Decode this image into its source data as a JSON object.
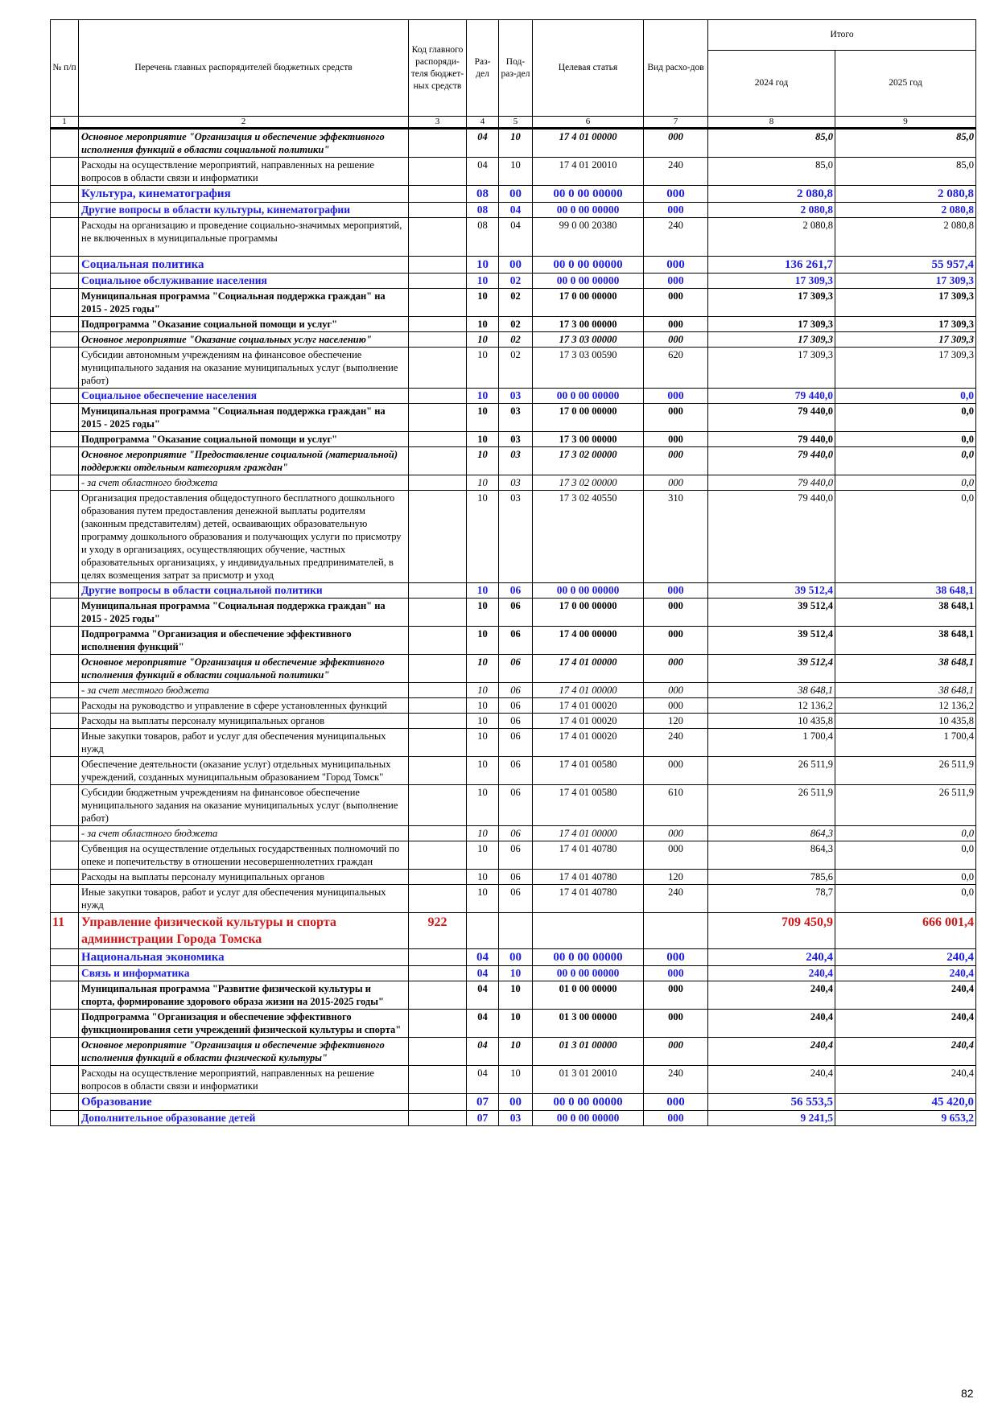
{
  "header": {
    "col_no": "№ п/п",
    "col_name": "Перечень главных распорядителей бюджетных средств",
    "col_code": "Код главного распоряди-теля бюджет-ных средств",
    "col_razdel": "Раз-дел",
    "col_podrazdel": "Под-раз-дел",
    "col_article": "Целевая статья",
    "col_vid": "Вид расхо-дов",
    "col_total": "Итого",
    "col_2024": "2024 год",
    "col_2025": "2025 год",
    "numbers": [
      "1",
      "2",
      "3",
      "4",
      "5",
      "6",
      "7",
      "8",
      "9"
    ]
  },
  "rows": [
    {
      "level": "osn",
      "name": "Основное мероприятие \"Организация и обеспечение эффективного исполнения функций в области социальной политики\"",
      "code": "",
      "razdel": "04",
      "podrazdel": "10",
      "article": "17 4 01 00000",
      "vid": "000",
      "y2024": "85,0",
      "y2025": "85,0"
    },
    {
      "level": "item",
      "name": "Расходы на осуществление мероприятий, направленных на решение вопросов в области связи и информатики",
      "code": "",
      "razdel": "04",
      "podrazdel": "10",
      "article": "17 4 01 20010",
      "vid": "240",
      "y2024": "85,0",
      "y2025": "85,0"
    },
    {
      "level": "razdel",
      "name": "Культура, кинематография",
      "code": "",
      "razdel": "08",
      "podrazdel": "00",
      "article": "00 0 00 00000",
      "vid": "000",
      "y2024": "2 080,8",
      "y2025": "2 080,8"
    },
    {
      "level": "podrazdel",
      "name": "Другие вопросы в области культуры, кинематографии",
      "code": "",
      "razdel": "08",
      "podrazdel": "04",
      "article": "00 0 00 00000",
      "vid": "000",
      "y2024": "2 080,8",
      "y2025": "2 080,8"
    },
    {
      "level": "item",
      "name": "Расходы на организацию и проведение социально-значимых мероприятий, не включенных в муниципальные программы",
      "code": "",
      "razdel": "08",
      "podrazdel": "04",
      "article": "99 0 00 20380",
      "vid": "240",
      "y2024": "2 080,8",
      "y2025": "2 080,8",
      "tall": true
    },
    {
      "level": "razdel",
      "name": "Социальная политика",
      "code": "",
      "razdel": "10",
      "podrazdel": "00",
      "article": "00 0 00 00000",
      "vid": "000",
      "y2024": "136 261,7",
      "y2025": "55 957,4"
    },
    {
      "level": "podrazdel",
      "name": "Социальное обслуживание населения",
      "code": "",
      "razdel": "10",
      "podrazdel": "02",
      "article": "00 0 00 00000",
      "vid": "000",
      "y2024": "17 309,3",
      "y2025": "17 309,3"
    },
    {
      "level": "prog",
      "name": "Муниципальная программа \"Социальная поддержка граждан\" на 2015 - 2025 годы\"",
      "code": "",
      "razdel": "10",
      "podrazdel": "02",
      "article": "17 0 00 00000",
      "vid": "000",
      "y2024": "17 309,3",
      "y2025": "17 309,3"
    },
    {
      "level": "prog",
      "name": "Подпрограмма \"Оказание социальной помощи и услуг\"",
      "code": "",
      "razdel": "10",
      "podrazdel": "02",
      "article": "17 3 00 00000",
      "vid": "000",
      "y2024": "17 309,3",
      "y2025": "17 309,3"
    },
    {
      "level": "osn",
      "name": "Основное мероприятие \"Оказание социальных услуг населению\"",
      "code": "",
      "razdel": "10",
      "podrazdel": "02",
      "article": "17 3 03 00000",
      "vid": "000",
      "y2024": "17 309,3",
      "y2025": "17 309,3"
    },
    {
      "level": "item",
      "name": "Субсидии автономным учреждениям на финансовое обеспечение муниципального задания на оказание муниципальных услуг (выполнение работ)",
      "code": "",
      "razdel": "10",
      "podrazdel": "02",
      "article": "17 3 03 00590",
      "vid": "620",
      "y2024": "17 309,3",
      "y2025": "17 309,3"
    },
    {
      "level": "podrazdel",
      "name": "Социальное обеспечение населения",
      "code": "",
      "razdel": "10",
      "podrazdel": "03",
      "article": "00 0 00 00000",
      "vid": "000",
      "y2024": "79 440,0",
      "y2025": "0,0"
    },
    {
      "level": "prog",
      "name": "Муниципальная программа \"Социальная поддержка граждан\" на 2015 - 2025 годы\"",
      "code": "",
      "razdel": "10",
      "podrazdel": "03",
      "article": "17 0 00 00000",
      "vid": "000",
      "y2024": "79 440,0",
      "y2025": "0,0"
    },
    {
      "level": "prog",
      "name": "Подпрограмма \"Оказание социальной помощи и услуг\"",
      "code": "",
      "razdel": "10",
      "podrazdel": "03",
      "article": "17 3 00 00000",
      "vid": "000",
      "y2024": "79 440,0",
      "y2025": "0,0"
    },
    {
      "level": "osn",
      "name": "Основное мероприятие \"Предоставление социальной (материальной) поддержки отдельным категориям граждан\"",
      "code": "",
      "razdel": "10",
      "podrazdel": "03",
      "article": "17 3 02 00000",
      "vid": "000",
      "y2024": "79 440,0",
      "y2025": "0,0"
    },
    {
      "level": "src",
      "name": " - за счет областного бюджета",
      "code": "",
      "razdel": "10",
      "podrazdel": "03",
      "article": "17 3 02 00000",
      "vid": "000",
      "y2024": "79 440,0",
      "y2025": "0,0"
    },
    {
      "level": "item",
      "name": "Организация предоставления общедоступного бесплатного дошкольного образования путем предоставления денежной выплаты родителям (законным представителям) детей, осваивающих образовательную программу дошкольного образования и получающих услуги по присмотру и уходу в организациях, осуществляющих обучение, частных образовательных организациях, у индивидуальных предпринимателей, в целях возмещения затрат за присмотр и уход",
      "code": "",
      "razdel": "10",
      "podrazdel": "03",
      "article": "17 3 02 40550",
      "vid": "310",
      "y2024": "79 440,0",
      "y2025": "0,0"
    },
    {
      "level": "podrazdel",
      "name": "Другие вопросы в области социальной политики",
      "code": "",
      "razdel": "10",
      "podrazdel": "06",
      "article": "00 0 00 00000",
      "vid": "000",
      "y2024": "39 512,4",
      "y2025": "38 648,1"
    },
    {
      "level": "prog",
      "name": "Муниципальная программа \"Социальная поддержка граждан\" на 2015 - 2025 годы\"",
      "code": "",
      "razdel": "10",
      "podrazdel": "06",
      "article": "17 0 00 00000",
      "vid": "000",
      "y2024": "39 512,4",
      "y2025": "38 648,1"
    },
    {
      "level": "prog",
      "name": "Подпрограмма \"Организация и обеспечение эффективного исполнения функций\"",
      "code": "",
      "razdel": "10",
      "podrazdel": "06",
      "article": "17 4 00 00000",
      "vid": "000",
      "y2024": "39 512,4",
      "y2025": "38 648,1"
    },
    {
      "level": "osn",
      "name": "Основное мероприятие \"Организация и обеспечение эффективного исполнения функций в области социальной политики\"",
      "code": "",
      "razdel": "10",
      "podrazdel": "06",
      "article": "17 4 01 00000",
      "vid": "000",
      "y2024": "39 512,4",
      "y2025": "38 648,1"
    },
    {
      "level": "src",
      "name": " - за счет местного бюджета",
      "code": "",
      "razdel": "10",
      "podrazdel": "06",
      "article": "17 4 01 00000",
      "vid": "000",
      "y2024": "38 648,1",
      "y2025": "38 648,1"
    },
    {
      "level": "item",
      "name": "Расходы на руководство и управление в сфере установленных функций",
      "code": "",
      "razdel": "10",
      "podrazdel": "06",
      "article": "17 4 01 00020",
      "vid": "000",
      "y2024": "12 136,2",
      "y2025": "12 136,2"
    },
    {
      "level": "item",
      "name": "Расходы на выплаты персоналу муниципальных органов",
      "code": "",
      "razdel": "10",
      "podrazdel": "06",
      "article": "17 4 01 00020",
      "vid": "120",
      "y2024": "10 435,8",
      "y2025": "10 435,8"
    },
    {
      "level": "item",
      "name": "Иные закупки товаров, работ и услуг для обеспечения муниципальных нужд",
      "code": "",
      "razdel": "10",
      "podrazdel": "06",
      "article": "17 4 01 00020",
      "vid": "240",
      "y2024": "1 700,4",
      "y2025": "1 700,4"
    },
    {
      "level": "item",
      "name": "Обеспечение деятельности (оказание услуг) отдельных муниципальных учреждений, созданных муниципальным образованием \"Город Томск\"",
      "code": "",
      "razdel": "10",
      "podrazdel": "06",
      "article": "17 4 01 00580",
      "vid": "000",
      "y2024": "26 511,9",
      "y2025": "26 511,9"
    },
    {
      "level": "item",
      "name": "Субсидии бюджетным учреждениям на финансовое обеспечение муниципального задания на оказание муниципальных услуг (выполнение работ)",
      "code": "",
      "razdel": "10",
      "podrazdel": "06",
      "article": "17 4 01 00580",
      "vid": "610",
      "y2024": "26 511,9",
      "y2025": "26 511,9"
    },
    {
      "level": "src",
      "name": " - за счет областного бюджета",
      "code": "",
      "razdel": "10",
      "podrazdel": "06",
      "article": "17 4 01 00000",
      "vid": "000",
      "y2024": "864,3",
      "y2025": "0,0"
    },
    {
      "level": "item",
      "name": "Субвенция на осуществление отдельных государственных полномочий по опеке и попечительству в отношении несовершеннолетних граждан",
      "code": "",
      "razdel": "10",
      "podrazdel": "06",
      "article": "17 4 01 40780",
      "vid": "000",
      "y2024": "864,3",
      "y2025": "0,0"
    },
    {
      "level": "item",
      "name": "Расходы на выплаты персоналу муниципальных органов",
      "code": "",
      "razdel": "10",
      "podrazdel": "06",
      "article": "17 4 01 40780",
      "vid": "120",
      "y2024": "785,6",
      "y2025": "0,0"
    },
    {
      "level": "item",
      "name": "Иные закупки товаров, работ и услуг для обеспечения муниципальных нужд",
      "code": "",
      "razdel": "10",
      "podrazdel": "06",
      "article": "17 4 01 40780",
      "vid": "240",
      "y2024": "78,7",
      "y2025": "0,0"
    },
    {
      "level": "dept",
      "no": "11",
      "name": "Управление физической культуры и спорта администрации Города Томска",
      "code": "922",
      "razdel": "",
      "podrazdel": "",
      "article": "",
      "vid": "",
      "y2024": "709 450,9",
      "y2025": "666 001,4"
    },
    {
      "level": "razdel",
      "name": "Национальная экономика",
      "code": "",
      "razdel": "04",
      "podrazdel": "00",
      "article": "00 0 00 00000",
      "vid": "000",
      "y2024": "240,4",
      "y2025": "240,4"
    },
    {
      "level": "podrazdel",
      "name": "Связь и информатика",
      "code": "",
      "razdel": "04",
      "podrazdel": "10",
      "article": "00 0 00 00000",
      "vid": "000",
      "y2024": "240,4",
      "y2025": "240,4"
    },
    {
      "level": "prog",
      "name": "Муниципальная программа \"Развитие физической культуры и спорта, формирование здорового образа жизни на 2015-2025 годы\"",
      "code": "",
      "razdel": "04",
      "podrazdel": "10",
      "article": "01 0 00 00000",
      "vid": "000",
      "y2024": "240,4",
      "y2025": "240,4"
    },
    {
      "level": "prog",
      "name": "Подпрограмма \"Организация и обеспечение эффективного функционирования сети учреждений физической культуры и спорта\"",
      "code": "",
      "razdel": "04",
      "podrazdel": "10",
      "article": "01 3 00 00000",
      "vid": "000",
      "y2024": "240,4",
      "y2025": "240,4"
    },
    {
      "level": "osn",
      "name": "Основное мероприятие \"Организация и обеспечение эффективного исполнения функций в области физической культуры\"",
      "code": "",
      "razdel": "04",
      "podrazdel": "10",
      "article": "01 3 01 00000",
      "vid": "000",
      "y2024": "240,4",
      "y2025": "240,4"
    },
    {
      "level": "item",
      "name": "Расходы на осуществление мероприятий, направленных на решение вопросов в области связи и информатики",
      "code": "",
      "razdel": "04",
      "podrazdel": "10",
      "article": "01 3 01 20010",
      "vid": "240",
      "y2024": "240,4",
      "y2025": "240,4"
    },
    {
      "level": "razdel",
      "name": "Образование",
      "code": "",
      "razdel": "07",
      "podrazdel": "00",
      "article": "00 0 00 00000",
      "vid": "000",
      "y2024": "56 553,5",
      "y2025": "45 420,0"
    },
    {
      "level": "podrazdel",
      "name": "Дополнительное образование детей",
      "code": "",
      "razdel": "07",
      "podrazdel": "03",
      "article": "00 0 00 00000",
      "vid": "000",
      "y2024": "9 241,5",
      "y2025": "9 653,2"
    }
  ],
  "page_number": "82"
}
